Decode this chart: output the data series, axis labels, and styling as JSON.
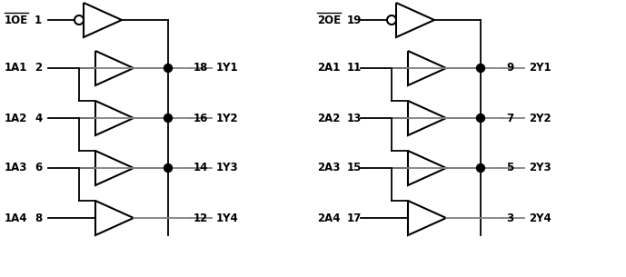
{
  "bg_color": "#ffffff",
  "line_color": "#000000",
  "gray_color": "#808080",
  "left_group": {
    "oe_label": "1OE",
    "oe_pin": "1",
    "inputs": [
      {
        "label": "1A1",
        "pin": "2",
        "out_pin": "18",
        "out_label": "1Y1"
      },
      {
        "label": "1A2",
        "pin": "4",
        "out_pin": "16",
        "out_label": "1Y2"
      },
      {
        "label": "1A3",
        "pin": "6",
        "out_pin": "14",
        "out_label": "1Y3"
      },
      {
        "label": "1A4",
        "pin": "8",
        "out_pin": "12",
        "out_label": "1Y4"
      }
    ]
  },
  "right_group": {
    "oe_label": "2OE",
    "oe_pin": "19",
    "inputs": [
      {
        "label": "2A1",
        "pin": "11",
        "out_pin": "9",
        "out_label": "2Y1"
      },
      {
        "label": "2A2",
        "pin": "13",
        "out_pin": "7",
        "out_label": "2Y2"
      },
      {
        "label": "2A3",
        "pin": "15",
        "out_pin": "5",
        "out_label": "2Y3"
      },
      {
        "label": "2A4",
        "pin": "17",
        "out_pin": "3",
        "out_label": "2Y4"
      }
    ]
  }
}
